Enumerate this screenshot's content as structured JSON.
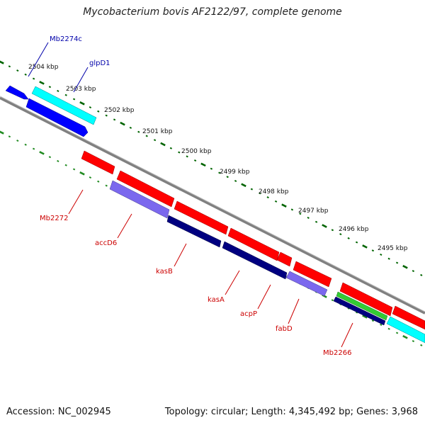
{
  "title": "Mycobacterium bovis AF2122/97, complete genome",
  "accession": "Accession: NC_002945",
  "topology": "Topology: circular; Length: 4,345,492 bp; Genes: 3,968",
  "scale_labels": [
    "2504 kbp",
    "2503 kbp",
    "2502 kbp",
    "2501 kbp",
    "2500 kbp",
    "2499 kbp",
    "2498 kbp",
    "2497 kbp",
    "2496 kbp",
    "2495 kbp"
  ],
  "gene_labels": {
    "forward": [
      "Mb2274c",
      "glpD1"
    ],
    "reverse": [
      "Mb2272",
      "accD6",
      "kasB",
      "kasA",
      "acpP",
      "fabD",
      "Mb2266"
    ]
  },
  "colors": {
    "backbone": "#808080",
    "forward_tick": "#006400",
    "reverse_tick": "#228B22",
    "label_forward": "#0000AA",
    "label_reverse": "#CC0000",
    "gene_red": "#FF0000",
    "gene_blue": "#0000FF",
    "gene_cyan": "#00FFFF",
    "gene_lavender": "#7B68EE",
    "gene_navy": "#000080",
    "gene_green": "#33CC33"
  }
}
